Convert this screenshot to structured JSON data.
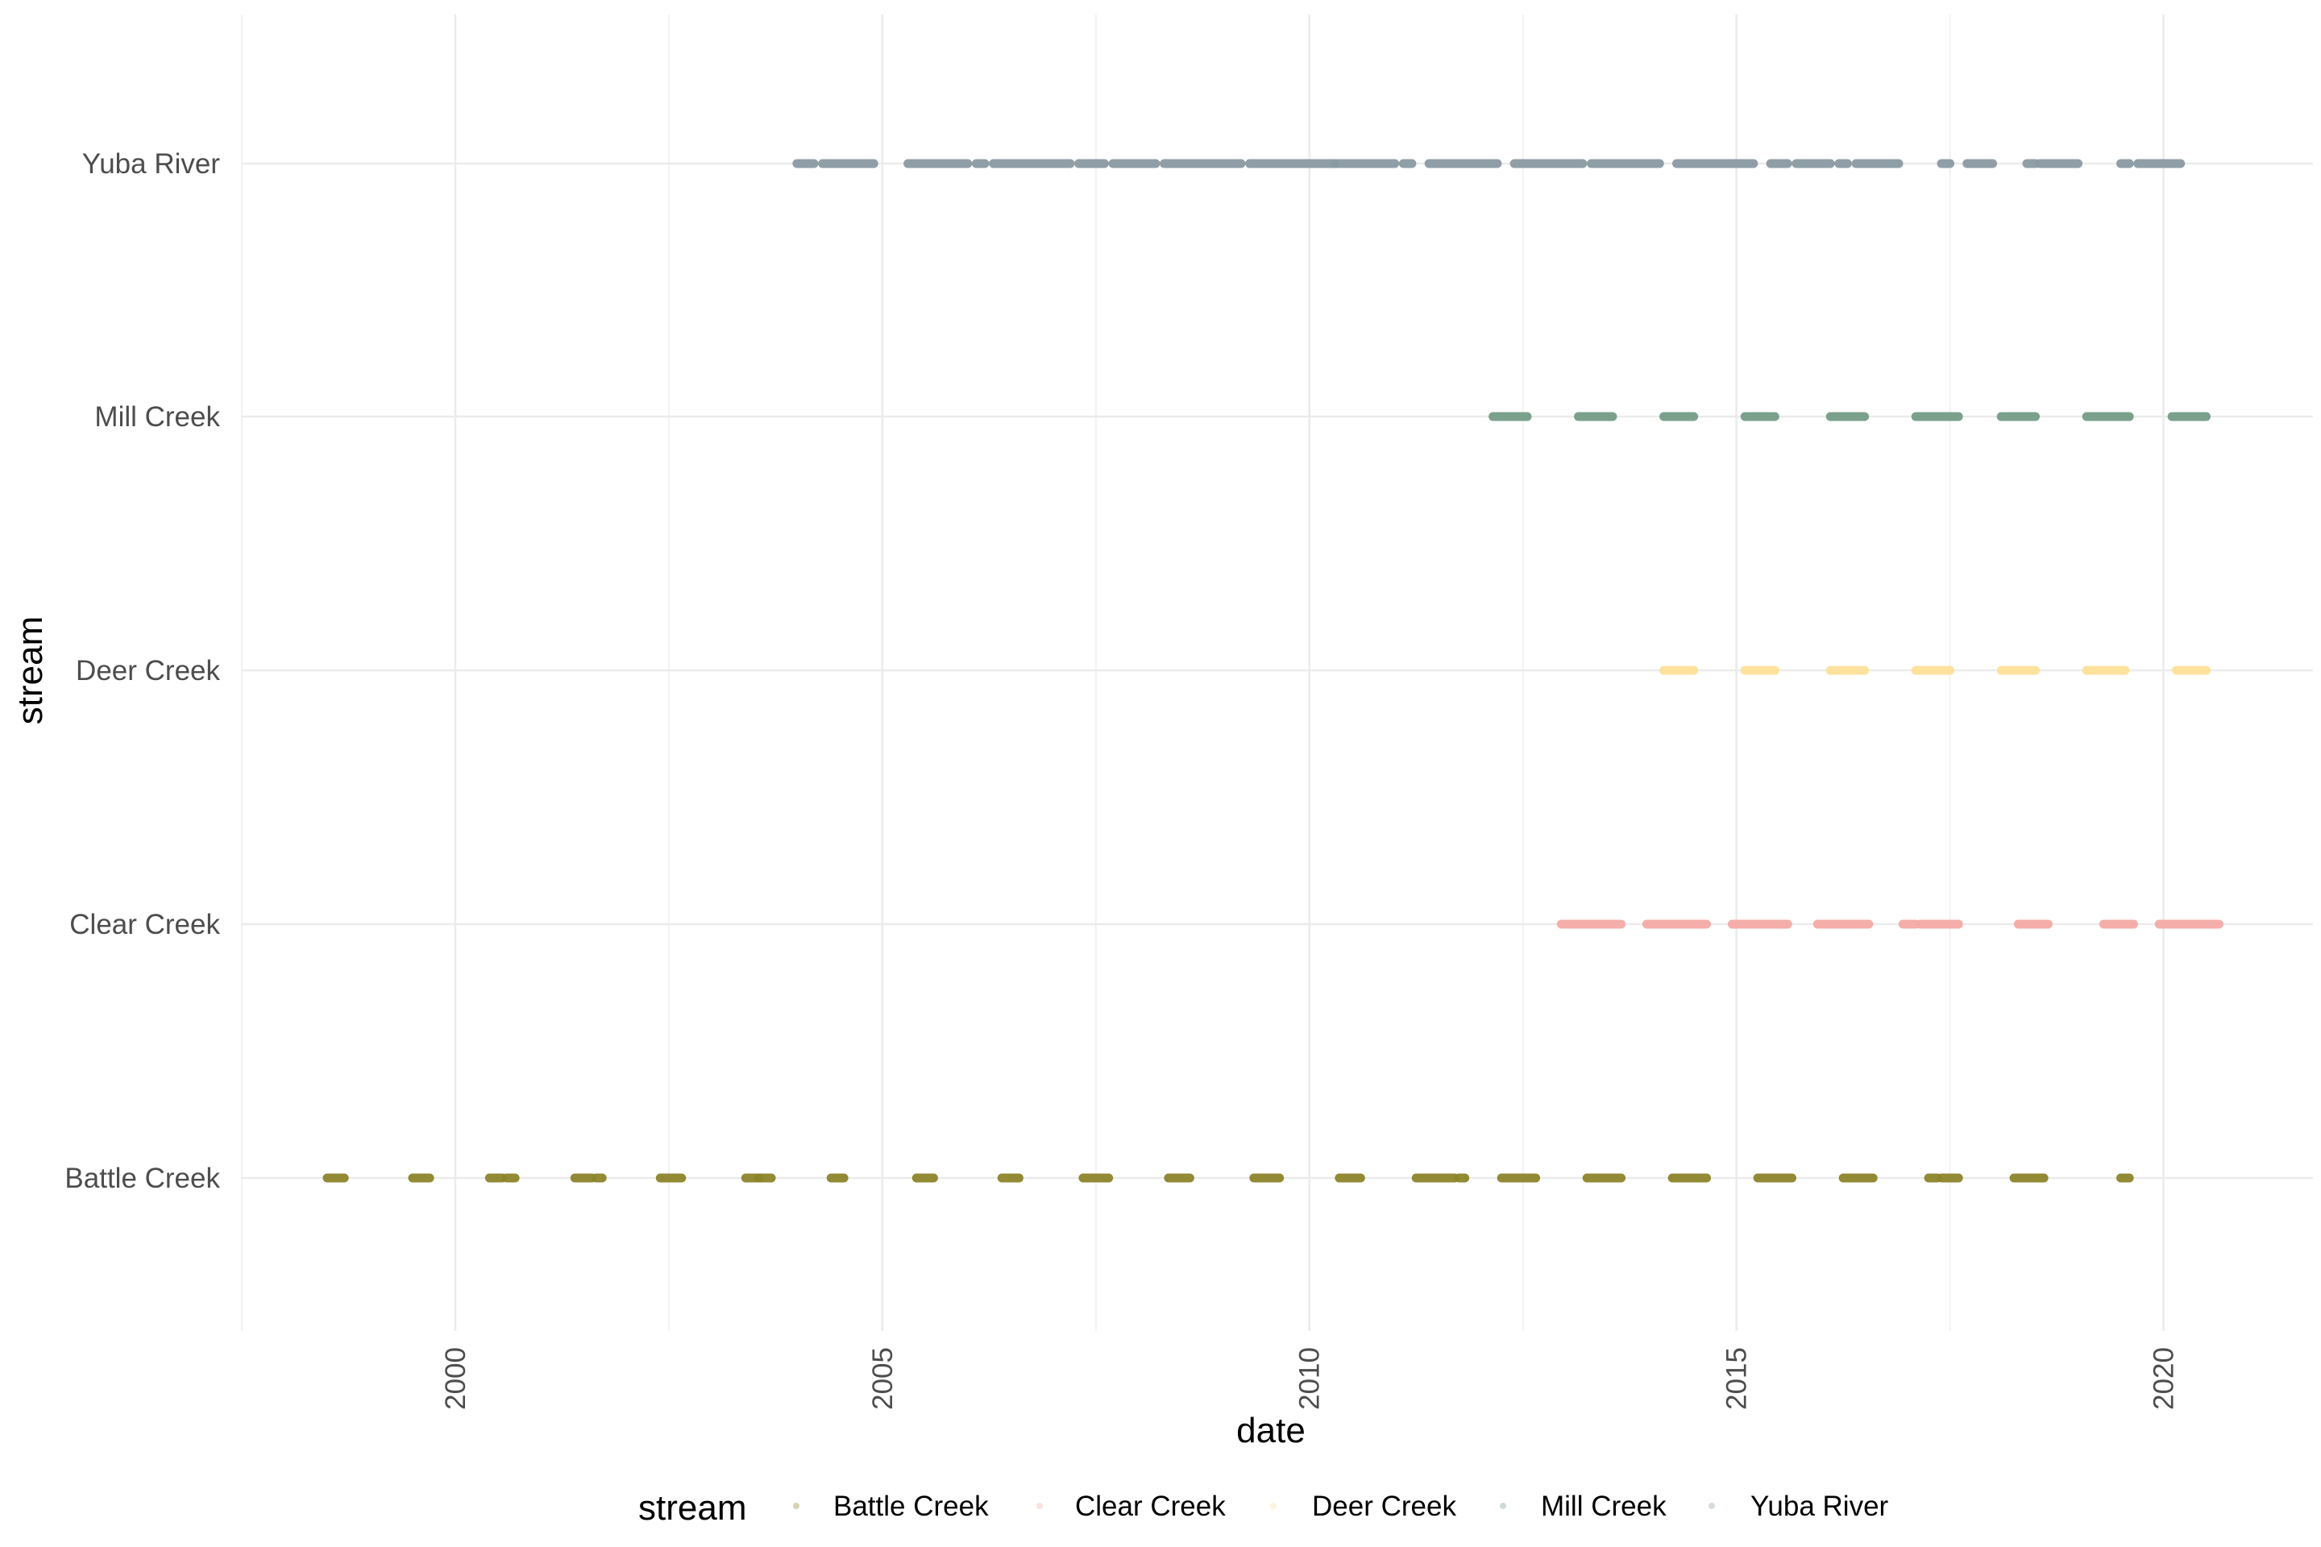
{
  "chart_data": {
    "type": "scatter",
    "title": "",
    "xlabel": "date",
    "ylabel": "stream",
    "xlim": [
      1997.5,
      2021.75
    ],
    "x_ticks": [
      2000,
      2005,
      2010,
      2015,
      2020
    ],
    "x_tick_labels": [
      "2000",
      "2005",
      "2010",
      "2015",
      "2020"
    ],
    "x_minor_ticks": [
      1997.5,
      2002.5,
      2007.5,
      2012.5,
      2017.5
    ],
    "grid": true,
    "legend": {
      "title": "stream",
      "position": "bottom"
    },
    "categories": [
      "Battle Creek",
      "Clear Creek",
      "Deer Creek",
      "Mill Creek",
      "Yuba River"
    ],
    "series": [
      {
        "name": "Battle Creek",
        "color": "#8c8429",
        "segments": [
          [
            1998.5,
            1998.7
          ],
          [
            1999.5,
            1999.7
          ],
          [
            2000.4,
            2000.55
          ],
          [
            2000.6,
            2000.7
          ],
          [
            2001.4,
            2001.6
          ],
          [
            2001.65,
            2001.72
          ],
          [
            2002.4,
            2002.65
          ],
          [
            2003.4,
            2003.55
          ],
          [
            2003.55,
            2003.7
          ],
          [
            2004.4,
            2004.55
          ],
          [
            2005.4,
            2005.6
          ],
          [
            2006.4,
            2006.6
          ],
          [
            2007.35,
            2007.65
          ],
          [
            2008.35,
            2008.6
          ],
          [
            2009.35,
            2009.65
          ],
          [
            2010.35,
            2010.6
          ],
          [
            2011.25,
            2011.7
          ],
          [
            2011.75,
            2011.82
          ],
          [
            2012.25,
            2012.65
          ],
          [
            2013.25,
            2013.65
          ],
          [
            2014.25,
            2014.65
          ],
          [
            2015.25,
            2015.65
          ],
          [
            2016.25,
            2016.6
          ],
          [
            2017.25,
            2017.35
          ],
          [
            2017.4,
            2017.6
          ],
          [
            2018.25,
            2018.6
          ],
          [
            2019.5,
            2019.6
          ]
        ]
      },
      {
        "name": "Clear Creek",
        "color": "#f4aaa4",
        "segments": [
          [
            2012.95,
            2013.65
          ],
          [
            2013.95,
            2014.65
          ],
          [
            2014.95,
            2015.6
          ],
          [
            2015.95,
            2016.55
          ],
          [
            2016.95,
            2017.1
          ],
          [
            2017.15,
            2017.6
          ],
          [
            2018.3,
            2018.65
          ],
          [
            2019.3,
            2019.65
          ],
          [
            2019.95,
            2020.65
          ]
        ]
      },
      {
        "name": "Deer Creek",
        "color": "#fde099",
        "segments": [
          [
            2014.15,
            2014.5
          ],
          [
            2015.1,
            2015.45
          ],
          [
            2016.1,
            2016.5
          ],
          [
            2017.1,
            2017.5
          ],
          [
            2018.1,
            2018.5
          ],
          [
            2019.1,
            2019.55
          ],
          [
            2020.15,
            2020.5
          ]
        ]
      },
      {
        "name": "Mill Creek",
        "color": "#749c86",
        "segments": [
          [
            2012.15,
            2012.55
          ],
          [
            2013.15,
            2013.55
          ],
          [
            2014.15,
            2014.5
          ],
          [
            2015.1,
            2015.45
          ],
          [
            2016.1,
            2016.5
          ],
          [
            2017.1,
            2017.6
          ],
          [
            2018.1,
            2018.5
          ],
          [
            2019.1,
            2019.6
          ],
          [
            2020.1,
            2020.5
          ]
        ]
      },
      {
        "name": "Yuba River",
        "color": "#8a9aa2",
        "segments": [
          [
            2004.0,
            2004.2
          ],
          [
            2004.3,
            2004.9
          ],
          [
            2005.3,
            2006.0
          ],
          [
            2006.1,
            2006.2
          ],
          [
            2006.3,
            2007.2
          ],
          [
            2007.3,
            2007.6
          ],
          [
            2007.7,
            2008.2
          ],
          [
            2008.3,
            2009.2
          ],
          [
            2009.3,
            2010.3
          ],
          [
            2010.3,
            2011.0
          ],
          [
            2011.1,
            2011.2
          ],
          [
            2011.4,
            2012.2
          ],
          [
            2012.4,
            2013.2
          ],
          [
            2013.3,
            2014.1
          ],
          [
            2014.3,
            2015.2
          ],
          [
            2015.4,
            2015.6
          ],
          [
            2015.7,
            2016.1
          ],
          [
            2016.2,
            2016.3
          ],
          [
            2016.4,
            2016.9
          ],
          [
            2017.4,
            2017.5
          ],
          [
            2017.7,
            2018.0
          ],
          [
            2018.4,
            2018.5
          ],
          [
            2018.55,
            2019.0
          ],
          [
            2019.5,
            2019.6
          ],
          [
            2019.7,
            2020.2
          ]
        ]
      }
    ]
  }
}
